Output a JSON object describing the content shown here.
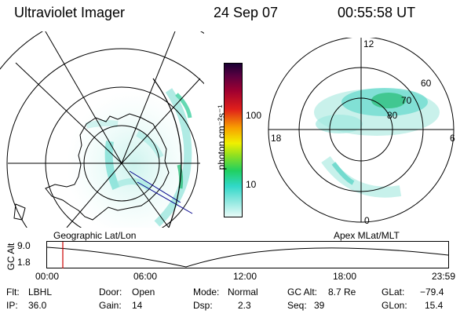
{
  "header": {
    "instrument": "Ultraviolet Imager",
    "date": "24 Sep 07",
    "time": "00:55:58 UT"
  },
  "colorbar": {
    "ticks": [
      "100",
      "10"
    ],
    "unit_label": "photon cm⁻²s⁻¹"
  },
  "left_panel": {
    "label": "Geographic Lat/Lon"
  },
  "right_panel": {
    "label": "Apex MLat/MLT",
    "hour_labels": [
      "12",
      "18",
      "6",
      "0"
    ],
    "lat_labels": [
      "60",
      "70",
      "80"
    ]
  },
  "timeline": {
    "axis_label": "GC Alt",
    "y_ticks": [
      "9.0",
      "1.8"
    ],
    "x_ticks": [
      "00:00",
      "06:00",
      "12:00",
      "18:00",
      "23:59"
    ],
    "marker_time": "00:55:58"
  },
  "info": {
    "filter_label": "Flt:",
    "filter_value": "LBHL",
    "ip_label": "IP:",
    "ip_value": "36.0",
    "door_label": "Door:",
    "door_value": "Open",
    "gain_label": "Gain:",
    "gain_value": "14",
    "mode_label": "Mode:",
    "mode_value": "Normal",
    "dsp_label": "Dsp:",
    "dsp_value": "2.3",
    "gcalt_label": "GC Alt:",
    "gcalt_value": "8.7 Re",
    "seq_label": "Seq:",
    "seq_value": "39",
    "glat_label": "GLat:",
    "glat_value": "−79.4",
    "glon_label": "GLon:",
    "glon_value": "15.4"
  },
  "colors": {
    "background": "#ffffff",
    "grid": "#000000",
    "aurora_light": "#9fe8e0",
    "aurora_mid": "#4fd6c8",
    "aurora_strong": "#2cbf7a",
    "marker": "#cc0000"
  }
}
